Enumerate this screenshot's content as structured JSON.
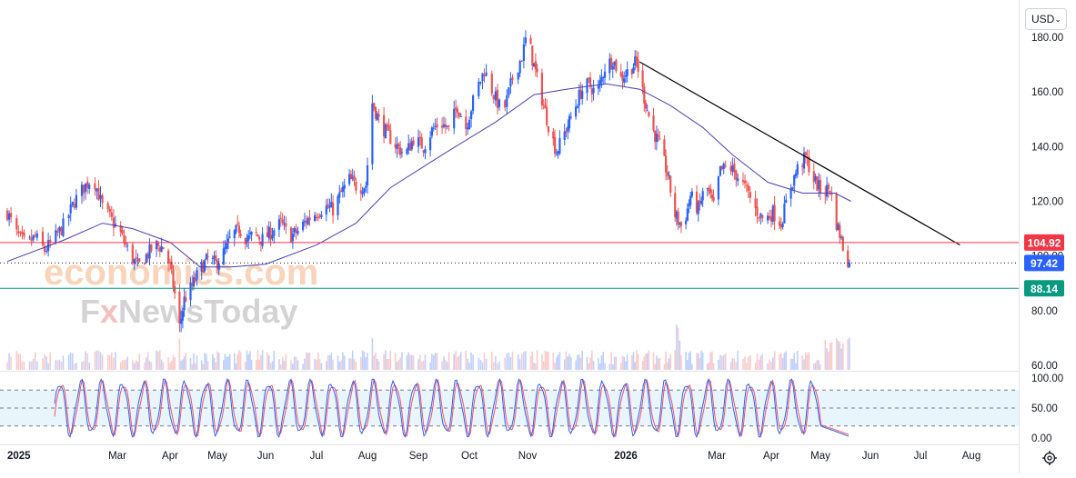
{
  "toolbar": {
    "currency": "USD"
  },
  "colors": {
    "up": "#2962ff",
    "down": "#ef5350",
    "ma": "#4a3fb4",
    "trendline": "#000000",
    "resistance": "#f23645",
    "support": "#089981",
    "current": "#2962ff",
    "stoch_k": "#2962ff",
    "stoch_d": "#f7525f",
    "stoch_band": "#e3f2fd"
  },
  "chart_data": [
    {
      "type": "candlestick",
      "y_ticks": [
        "180.00",
        "160.00",
        "140.00",
        "120.00",
        "100.00",
        "80.00",
        "60.00"
      ],
      "y_tick_values": [
        180,
        160,
        140,
        120,
        100,
        80,
        60
      ],
      "ylim": [
        58,
        187
      ],
      "x_labels": [
        {
          "text": "2025",
          "bold": true
        },
        {
          "text": "Mar"
        },
        {
          "text": "Apr"
        },
        {
          "text": "May"
        },
        {
          "text": "Jun"
        },
        {
          "text": "Jul"
        },
        {
          "text": "Aug"
        },
        {
          "text": "Sep"
        },
        {
          "text": "Oct"
        },
        {
          "text": "Nov"
        },
        {
          "text": "2026",
          "bold": true
        },
        {
          "text": "Mar"
        },
        {
          "text": "Apr"
        },
        {
          "text": "May"
        },
        {
          "text": "Jun"
        },
        {
          "text": "Jul"
        },
        {
          "text": "Aug"
        }
      ],
      "close_path": [
        [
          "2025-01-01",
          116
        ],
        [
          "2025-01-06",
          108
        ],
        [
          "2025-01-11",
          104
        ],
        [
          "2025-01-16",
          107
        ],
        [
          "2025-01-21",
          102
        ],
        [
          "2025-01-26",
          106
        ],
        [
          "2025-02-01",
          112
        ],
        [
          "2025-02-06",
          120
        ],
        [
          "2025-02-11",
          125
        ],
        [
          "2025-02-16",
          129
        ],
        [
          "2025-02-21",
          118
        ],
        [
          "2025-02-26",
          113
        ],
        [
          "2025-03-03",
          108
        ],
        [
          "2025-03-08",
          101
        ],
        [
          "2025-03-13",
          96
        ],
        [
          "2025-03-18",
          100
        ],
        [
          "2025-03-23",
          104
        ],
        [
          "2025-03-28",
          103
        ],
        [
          "2025-04-01",
          96
        ],
        [
          "2025-04-04",
          86
        ],
        [
          "2025-04-07",
          74
        ],
        [
          "2025-04-10",
          84
        ],
        [
          "2025-04-15",
          89
        ],
        [
          "2025-04-20",
          95
        ],
        [
          "2025-04-25",
          99
        ],
        [
          "2025-04-30",
          97
        ],
        [
          "2025-05-05",
          101
        ],
        [
          "2025-05-10",
          107
        ],
        [
          "2025-05-15",
          110
        ],
        [
          "2025-05-20",
          106
        ],
        [
          "2025-05-25",
          108
        ],
        [
          "2025-05-30",
          106
        ],
        [
          "2025-06-05",
          109
        ],
        [
          "2025-06-10",
          112
        ],
        [
          "2025-06-15",
          107
        ],
        [
          "2025-06-20",
          109
        ],
        [
          "2025-06-25",
          113
        ],
        [
          "2025-07-01",
          116
        ],
        [
          "2025-07-06",
          118
        ],
        [
          "2025-07-11",
          117
        ],
        [
          "2025-07-16",
          123
        ],
        [
          "2025-07-21",
          128
        ],
        [
          "2025-07-26",
          125
        ],
        [
          "2025-07-31",
          126
        ],
        [
          "2025-08-04",
          156
        ],
        [
          "2025-08-09",
          148
        ],
        [
          "2025-08-14",
          144
        ],
        [
          "2025-08-19",
          140
        ],
        [
          "2025-08-24",
          137
        ],
        [
          "2025-08-29",
          143
        ],
        [
          "2025-09-04",
          140
        ],
        [
          "2025-09-09",
          146
        ],
        [
          "2025-09-14",
          149
        ],
        [
          "2025-09-19",
          146
        ],
        [
          "2025-09-24",
          155
        ],
        [
          "2025-09-29",
          147
        ],
        [
          "2025-10-04",
          159
        ],
        [
          "2025-10-09",
          168
        ],
        [
          "2025-10-14",
          159
        ],
        [
          "2025-10-19",
          152
        ],
        [
          "2025-10-24",
          165
        ],
        [
          "2025-10-29",
          173
        ],
        [
          "2025-11-01",
          182
        ],
        [
          "2025-11-04",
          172
        ],
        [
          "2025-11-09",
          160
        ],
        [
          "2025-11-14",
          148
        ],
        [
          "2025-11-19",
          138
        ],
        [
          "2025-11-24",
          145
        ],
        [
          "2025-11-29",
          152
        ],
        [
          "2025-12-04",
          160
        ],
        [
          "2025-12-09",
          163
        ],
        [
          "2025-12-14",
          159
        ],
        [
          "2025-12-19",
          169
        ],
        [
          "2025-12-24",
          172
        ],
        [
          "2025-12-29",
          165
        ],
        [
          "2026-01-03",
          168
        ],
        [
          "2026-01-08",
          171
        ],
        [
          "2026-01-13",
          158
        ],
        [
          "2026-01-18",
          147
        ],
        [
          "2026-01-23",
          140
        ],
        [
          "2026-01-28",
          130
        ],
        [
          "2026-02-02",
          115
        ],
        [
          "2026-02-07",
          110
        ],
        [
          "2026-02-12",
          122
        ],
        [
          "2026-02-17",
          117
        ],
        [
          "2026-02-22",
          126
        ],
        [
          "2026-02-27",
          118
        ],
        [
          "2026-03-03",
          131
        ],
        [
          "2026-03-08",
          133
        ],
        [
          "2026-03-13",
          129
        ],
        [
          "2026-03-18",
          124
        ],
        [
          "2026-03-23",
          117
        ],
        [
          "2026-03-28",
          113
        ],
        [
          "2026-04-02",
          116
        ],
        [
          "2026-04-07",
          112
        ],
        [
          "2026-04-12",
          124
        ],
        [
          "2026-04-17",
          132
        ],
        [
          "2026-04-22",
          136
        ],
        [
          "2026-04-27",
          128
        ],
        [
          "2026-05-02",
          123
        ],
        [
          "2026-05-07",
          125
        ],
        [
          "2026-05-10",
          114
        ],
        [
          "2026-05-13",
          108
        ],
        [
          "2026-05-16",
          101
        ],
        [
          "2026-05-19",
          97.42
        ]
      ],
      "ma_path": [
        [
          "2025-01-01",
          98
        ],
        [
          "2025-02-01",
          106
        ],
        [
          "2025-02-21",
          112
        ],
        [
          "2025-03-10",
          110
        ],
        [
          "2025-04-01",
          105
        ],
        [
          "2025-04-20",
          96
        ],
        [
          "2025-05-10",
          96
        ],
        [
          "2025-06-01",
          97
        ],
        [
          "2025-07-01",
          104
        ],
        [
          "2025-07-25",
          112
        ],
        [
          "2025-08-15",
          125
        ],
        [
          "2025-09-15",
          137
        ],
        [
          "2025-10-15",
          149
        ],
        [
          "2025-11-05",
          159
        ],
        [
          "2025-11-25",
          161
        ],
        [
          "2025-12-20",
          163
        ],
        [
          "2026-01-10",
          161
        ],
        [
          "2026-01-30",
          155
        ],
        [
          "2026-02-20",
          147
        ],
        [
          "2026-03-10",
          137
        ],
        [
          "2026-03-30",
          127
        ],
        [
          "2026-04-20",
          123
        ],
        [
          "2026-05-10",
          123
        ],
        [
          "2026-05-20",
          120
        ]
      ],
      "trendline": [
        [
          "2026-01-10",
          171
        ],
        [
          "2026-07-25",
          104
        ]
      ],
      "levels": [
        {
          "name": "resistance",
          "value": 104.92,
          "label": "104.92"
        },
        {
          "name": "current",
          "value": 97.42,
          "label": "97.42"
        },
        {
          "name": "support",
          "value": 88.14,
          "label": "88.14"
        }
      ]
    },
    {
      "type": "line",
      "indicator": "stochastic",
      "y_ticks": [
        "100.00",
        "50.00",
        "0.00"
      ],
      "y_tick_values": [
        100,
        50,
        0
      ],
      "band": [
        20,
        80
      ],
      "cycles": 38,
      "last_value": 3
    }
  ],
  "watermark": {
    "line1": "economies.com",
    "line2_prefix": "F",
    "line2_x": "x",
    "line2_rest": "NewsToday"
  }
}
